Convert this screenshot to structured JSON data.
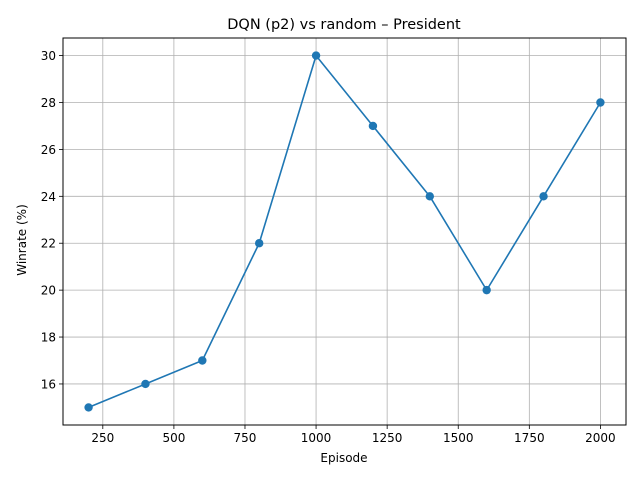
{
  "chart_data": {
    "type": "line",
    "title": "DQN (p2) vs random – President",
    "xlabel": "Episode",
    "ylabel": "Winrate (%)",
    "xlim": [
      110,
      2090
    ],
    "ylim": [
      14.25,
      30.75
    ],
    "xticks": [
      250,
      500,
      750,
      1000,
      1250,
      1500,
      1750,
      2000
    ],
    "yticks": [
      16,
      18,
      20,
      22,
      24,
      26,
      28,
      30
    ],
    "grid": true,
    "series": [
      {
        "x": [
          200,
          400,
          600,
          800,
          1000,
          1200,
          1400,
          1600,
          1800,
          2000
        ],
        "y": [
          15,
          16,
          17,
          22,
          30,
          27,
          24,
          20,
          24,
          28
        ],
        "color": "#1f77b4",
        "marker": "circle"
      }
    ]
  }
}
